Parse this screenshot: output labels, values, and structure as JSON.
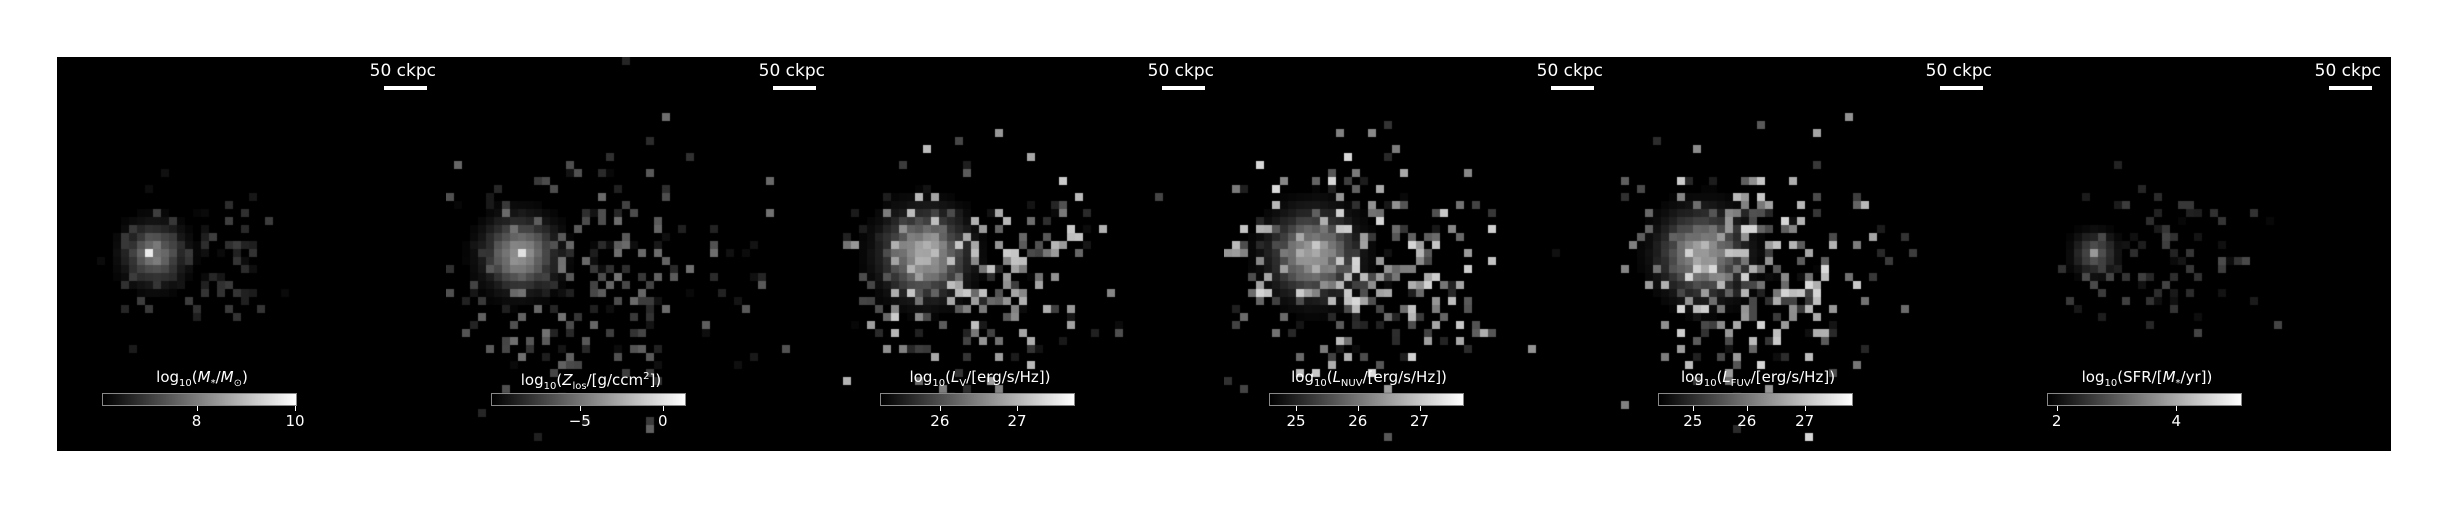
{
  "figure": {
    "scale_bar": "50 ckpc",
    "panels": [
      {
        "id": "stellar-mass",
        "colorbar_label_html": "log<sub>10</sub>(<i>M</i><sub>*</sub>/<i>M</i><sub>&#8857;</sub>)",
        "ticks": [
          {
            "label": "8",
            "frac": 0.49
          },
          {
            "label": "10",
            "frac": 1.0
          }
        ],
        "blobs": [
          [
            0.235,
            0.5,
            5,
            1.0
          ],
          [
            0.25,
            0.5,
            25,
            0.55
          ]
        ],
        "spread": [
          0.34,
          0.5,
          45,
          35,
          120,
          0.25
        ]
      },
      {
        "id": "metallicity",
        "colorbar_label_html": "log<sub>10</sub>(<i>Z</i><sub>los</sub>/[g/ccm<sup>2</sup>])",
        "ticks": [
          {
            "label": "−5",
            "frac": 0.46
          },
          {
            "label": "0",
            "frac": 0.89
          }
        ],
        "blobs": [
          [
            0.2,
            0.5,
            6,
            1.0
          ],
          [
            0.19,
            0.5,
            30,
            0.65
          ]
        ],
        "spread": [
          0.35,
          0.55,
          75,
          55,
          260,
          0.45
        ]
      },
      {
        "id": "v-band",
        "colorbar_label_html": "log<sub>10</sub>(<i>L</i><sub>V</sub>/[erg/s/Hz])",
        "ticks": [
          {
            "label": "26",
            "frac": 0.31
          },
          {
            "label": "27",
            "frac": 0.71
          }
        ],
        "blobs": [
          [
            0.25,
            0.5,
            8,
            1.0
          ],
          [
            0.23,
            0.5,
            35,
            0.75
          ]
        ],
        "spread": [
          0.35,
          0.55,
          70,
          55,
          260,
          0.8
        ]
      },
      {
        "id": "nuv-band",
        "colorbar_label_html": "log<sub>10</sub>(<i>L</i><sub>NUV</sub>/[erg/s/Hz])",
        "ticks": [
          {
            "label": "25",
            "frac": 0.14
          },
          {
            "label": "26",
            "frac": 0.46
          },
          {
            "label": "27",
            "frac": 0.78
          }
        ],
        "blobs": [
          [
            0.23,
            0.48,
            10,
            0.9
          ],
          [
            0.23,
            0.5,
            35,
            0.7
          ]
        ],
        "spread": [
          0.35,
          0.55,
          70,
          55,
          270,
          0.85
        ]
      },
      {
        "id": "fuv-band",
        "colorbar_label_html": "log<sub>10</sub>(<i>L</i><sub>FUV</sub>/[erg/s/Hz])",
        "ticks": [
          {
            "label": "25",
            "frac": 0.18
          },
          {
            "label": "26",
            "frac": 0.46
          },
          {
            "label": "27",
            "frac": 0.76
          }
        ],
        "blobs": [
          [
            0.23,
            0.48,
            10,
            0.9
          ],
          [
            0.23,
            0.5,
            35,
            0.7
          ]
        ],
        "spread": [
          0.35,
          0.55,
          70,
          55,
          270,
          0.85
        ]
      },
      {
        "id": "sfr",
        "colorbar_label_html": "log<sub>10</sub>(SFR/[<i>M</i><sub>*</sub>/yr])",
        "ticks": [
          {
            "label": "2",
            "frac": 0.05
          },
          {
            "label": "4",
            "frac": 0.67
          }
        ],
        "blobs": [
          [
            0.24,
            0.49,
            5,
            1.0
          ],
          [
            0.24,
            0.5,
            18,
            0.4
          ]
        ],
        "spread": [
          0.42,
          0.5,
          50,
          35,
          90,
          0.3
        ]
      }
    ]
  }
}
